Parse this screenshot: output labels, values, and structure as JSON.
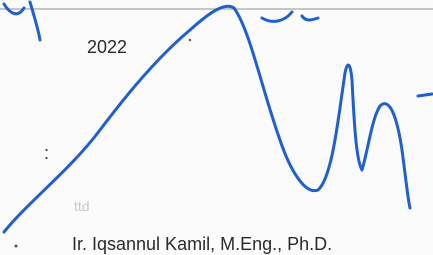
{
  "document": {
    "year": "2022",
    "colon": ":",
    "signature_label": "ttd",
    "signer_name": "Ir. Iqsannul Kamil, M.Eng., Ph.D."
  }
}
